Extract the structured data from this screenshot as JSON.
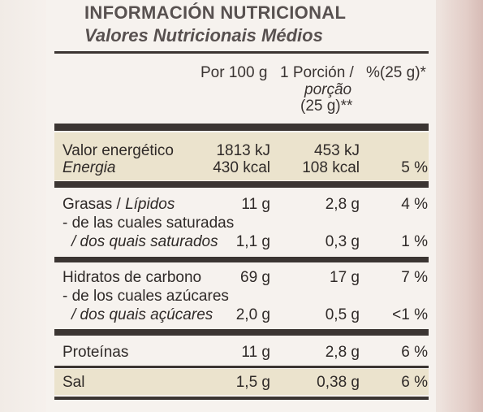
{
  "title": "INFORMACIÓN NUTRICIONAL",
  "subtitle": "Valores Nutricionais Médios",
  "headers": {
    "per100": "Por 100 g",
    "portion_line1": "1 Porción /",
    "portion_line2": "porção",
    "portion_line3": "(25 g)**",
    "percent": "%(25 g)*"
  },
  "rows": {
    "energy": {
      "label_es": "Valor energético",
      "label_pt": "Energia",
      "kj_100": "1813 kJ",
      "kcal_100": "430 kcal",
      "kj_portion": "453 kJ",
      "kcal_portion": "108 kcal",
      "percent": "5 %"
    },
    "fat": {
      "label": "Grasas / Lípidos",
      "per100": "11 g",
      "portion": "2,8 g",
      "percent": "4 %"
    },
    "saturated": {
      "label_es": "- de las cuales saturadas",
      "label_pt": "/ dos quais saturados",
      "per100": "1,1 g",
      "portion": "0,3 g",
      "percent": "1 %"
    },
    "carbs": {
      "label": "Hidratos de carbono",
      "per100": "69 g",
      "portion": "17 g",
      "percent": "7 %"
    },
    "sugars": {
      "label_es": "- de los cuales azúcares",
      "label_pt": "/ dos quais açúcares",
      "per100": "2,0 g",
      "portion": "0,5 g",
      "percent": "<1 %"
    },
    "protein": {
      "label": "Proteínas",
      "per100": "11 g",
      "portion": "2,8 g",
      "percent": "6 %"
    },
    "salt": {
      "label": "Sal",
      "per100": "1,5 g",
      "portion": "0,38 g",
      "percent": "6 %"
    }
  }
}
